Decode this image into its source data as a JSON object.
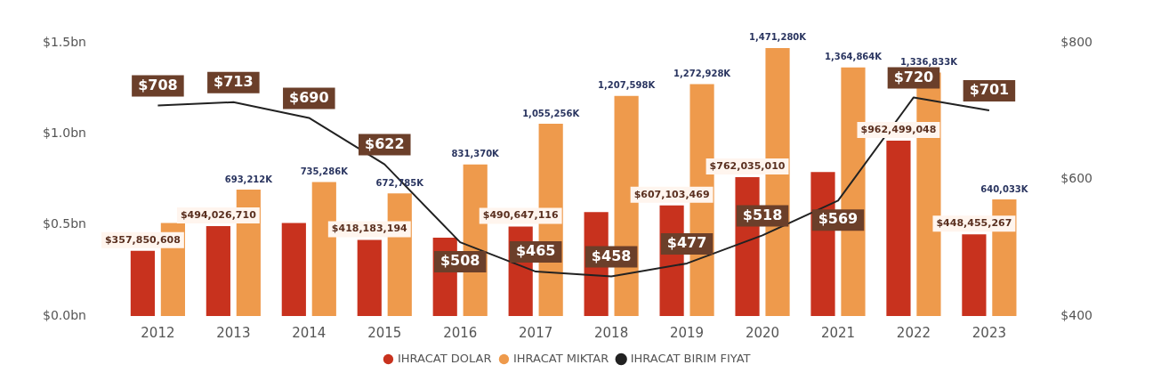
{
  "chart_data": {
    "type": "bar",
    "categories": [
      "2012",
      "2013",
      "2014",
      "2015",
      "2016",
      "2017",
      "2018",
      "2019",
      "2020",
      "2021",
      "2022",
      "2023"
    ],
    "ylim": [
      0,
      1500000000
    ],
    "yticks": [
      {
        "value": 0,
        "label": "$0.0bn"
      },
      {
        "value": 500000000,
        "label": "$0.5bn"
      },
      {
        "value": 1000000000,
        "label": "$1.0bn"
      },
      {
        "value": 1500000000,
        "label": "$1.5bn"
      }
    ],
    "y2lim": [
      400,
      800
    ],
    "y2ticks": [
      {
        "value": 400,
        "label": "$400"
      },
      {
        "value": 600,
        "label": "$600"
      },
      {
        "value": 800,
        "label": "$800"
      }
    ],
    "grid": false,
    "legend": "bottom",
    "marker": "none",
    "line_style": "solid",
    "series": [
      {
        "name": "IHRACAT DOLAR",
        "color": "#c8321e",
        "values": [
          357850608,
          494026710,
          510000000,
          418183194,
          430000000,
          490647116,
          570000000,
          607103469,
          762035010,
          790000000,
          962499048,
          448455267
        ],
        "value_labels": [
          "$357,850,608",
          "$494,026,710",
          null,
          "$418,183,194",
          null,
          "$490,647,116",
          null,
          "$607,103,469",
          "$762,035,010",
          null,
          "$962,499,048",
          "$448,455,267"
        ]
      },
      {
        "name": "IHRACAT MIKTAR",
        "color": "#ee9a4c",
        "values": [
          510000000,
          693212000,
          735286000,
          672785000,
          831370000,
          1055256000,
          1207598000,
          1272928000,
          1471280000,
          1364864000,
          1336833000,
          640033000
        ],
        "value_labels": [
          null,
          "693,212K",
          "735,286K",
          "672,785K",
          "831,370K",
          "1,055,256K",
          "1,207,598K",
          "1,272,928K",
          "1,471,280K",
          "1,364,864K",
          "1,336,833K",
          "640,033K"
        ]
      },
      {
        "name": "IHRACAT BIRIM FIYAT",
        "type": "line",
        "axis": "y2",
        "color": "#222222",
        "values": [
          708,
          713,
          690,
          622,
          508,
          465,
          458,
          477,
          518,
          569,
          720,
          701
        ],
        "value_labels": [
          "$708",
          "$713",
          "$690",
          "$622",
          "$508",
          "$465",
          "$458",
          "$477",
          "$518",
          "$569",
          "$720",
          "$701"
        ]
      }
    ]
  }
}
